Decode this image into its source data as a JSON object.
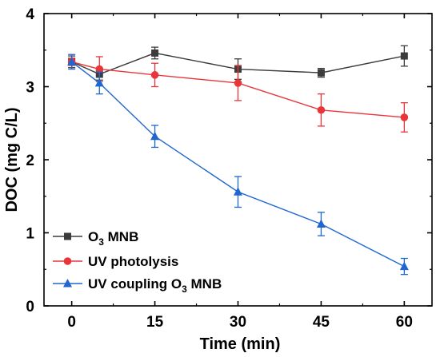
{
  "chart_data": {
    "type": "line",
    "xlabel": "Time (min)",
    "ylabel": "DOC (mg C/L)",
    "xlim": [
      -5,
      65
    ],
    "ylim": [
      0,
      4
    ],
    "x_ticks": [
      "0",
      "15",
      "30",
      "45",
      "60"
    ],
    "y_ticks": [
      "0",
      "1",
      "2",
      "3",
      "4"
    ],
    "legend_position": "bottom-left",
    "x": [
      0,
      5,
      15,
      30,
      45,
      60
    ],
    "series": [
      {
        "name": "O3 MNB",
        "label_main": "O",
        "label_sub": "3",
        "label_rest": " MNB",
        "color": "#3c3c3c",
        "marker": "square",
        "values": [
          3.34,
          3.17,
          3.46,
          3.24,
          3.19,
          3.42
        ],
        "errors": [
          0.08,
          0.08,
          0.08,
          0.14,
          0.06,
          0.14
        ]
      },
      {
        "name": "UV photolysis",
        "label_main": "UV photolysis",
        "label_sub": "",
        "label_rest": "",
        "color": "#e8353a",
        "marker": "circle",
        "values": [
          3.34,
          3.24,
          3.16,
          3.05,
          2.68,
          2.58
        ],
        "errors": [
          0.05,
          0.17,
          0.16,
          0.24,
          0.22,
          0.2
        ]
      },
      {
        "name": "UV coupling O3 MNB",
        "label_main": "UV coupling O",
        "label_sub": "3",
        "label_rest": " MNB",
        "color": "#1f66d1",
        "marker": "triangle",
        "values": [
          3.34,
          3.05,
          2.32,
          1.56,
          1.12,
          0.54
        ],
        "errors": [
          0.1,
          0.15,
          0.15,
          0.21,
          0.16,
          0.11
        ]
      }
    ]
  }
}
